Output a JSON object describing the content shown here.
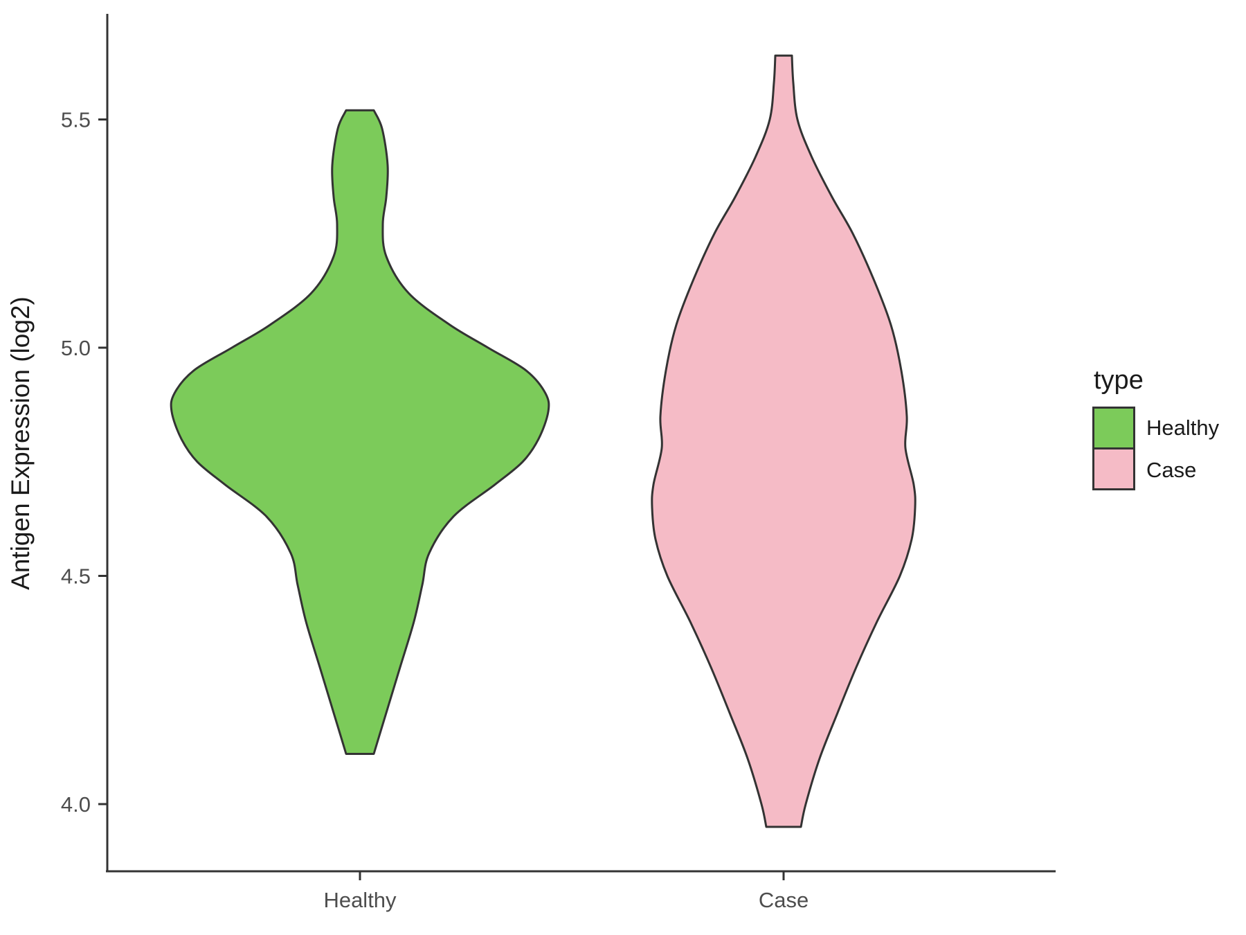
{
  "chart_data": {
    "type": "violin",
    "title": "",
    "xlabel": "",
    "ylabel": "Antigen Expression (log2)",
    "categories": [
      "Healthy",
      "Case"
    ],
    "y_ticks": [
      "4.0",
      "4.5",
      "5.0",
      "5.5"
    ],
    "ylim": [
      3.82,
      5.75
    ],
    "grid": "off",
    "legend": {
      "title": "type",
      "position": "right",
      "entries": [
        {
          "label": "Healthy",
          "color": "#7CCB5A"
        },
        {
          "label": "Case",
          "color": "#F5BBC6"
        }
      ]
    },
    "series": [
      {
        "name": "Healthy",
        "fill": "#7CCB5A",
        "outline": "#333333",
        "value_range": [
          4.11,
          5.52
        ],
        "profile": [
          [
            5.52,
            20
          ],
          [
            5.48,
            32
          ],
          [
            5.4,
            40
          ],
          [
            5.33,
            38
          ],
          [
            5.27,
            33
          ],
          [
            5.2,
            38
          ],
          [
            5.12,
            70
          ],
          [
            5.05,
            130
          ],
          [
            5.0,
            185
          ],
          [
            4.95,
            240
          ],
          [
            4.9,
            268
          ],
          [
            4.86,
            272
          ],
          [
            4.8,
            258
          ],
          [
            4.75,
            235
          ],
          [
            4.7,
            195
          ],
          [
            4.63,
            135
          ],
          [
            4.55,
            100
          ],
          [
            4.48,
            90
          ],
          [
            4.4,
            78
          ],
          [
            4.3,
            58
          ],
          [
            4.22,
            42
          ],
          [
            4.15,
            28
          ],
          [
            4.11,
            20
          ]
        ]
      },
      {
        "name": "Case",
        "fill": "#F5BBC6",
        "outline": "#333333",
        "value_range": [
          3.95,
          5.64
        ],
        "profile": [
          [
            5.64,
            12
          ],
          [
            5.58,
            14
          ],
          [
            5.5,
            20
          ],
          [
            5.42,
            40
          ],
          [
            5.33,
            70
          ],
          [
            5.25,
            100
          ],
          [
            5.15,
            130
          ],
          [
            5.05,
            155
          ],
          [
            4.95,
            170
          ],
          [
            4.85,
            178
          ],
          [
            4.78,
            176
          ],
          [
            4.7,
            188
          ],
          [
            4.65,
            190
          ],
          [
            4.58,
            185
          ],
          [
            4.5,
            168
          ],
          [
            4.4,
            135
          ],
          [
            4.3,
            105
          ],
          [
            4.2,
            78
          ],
          [
            4.1,
            52
          ],
          [
            4.0,
            32
          ],
          [
            3.95,
            25
          ]
        ]
      }
    ]
  }
}
